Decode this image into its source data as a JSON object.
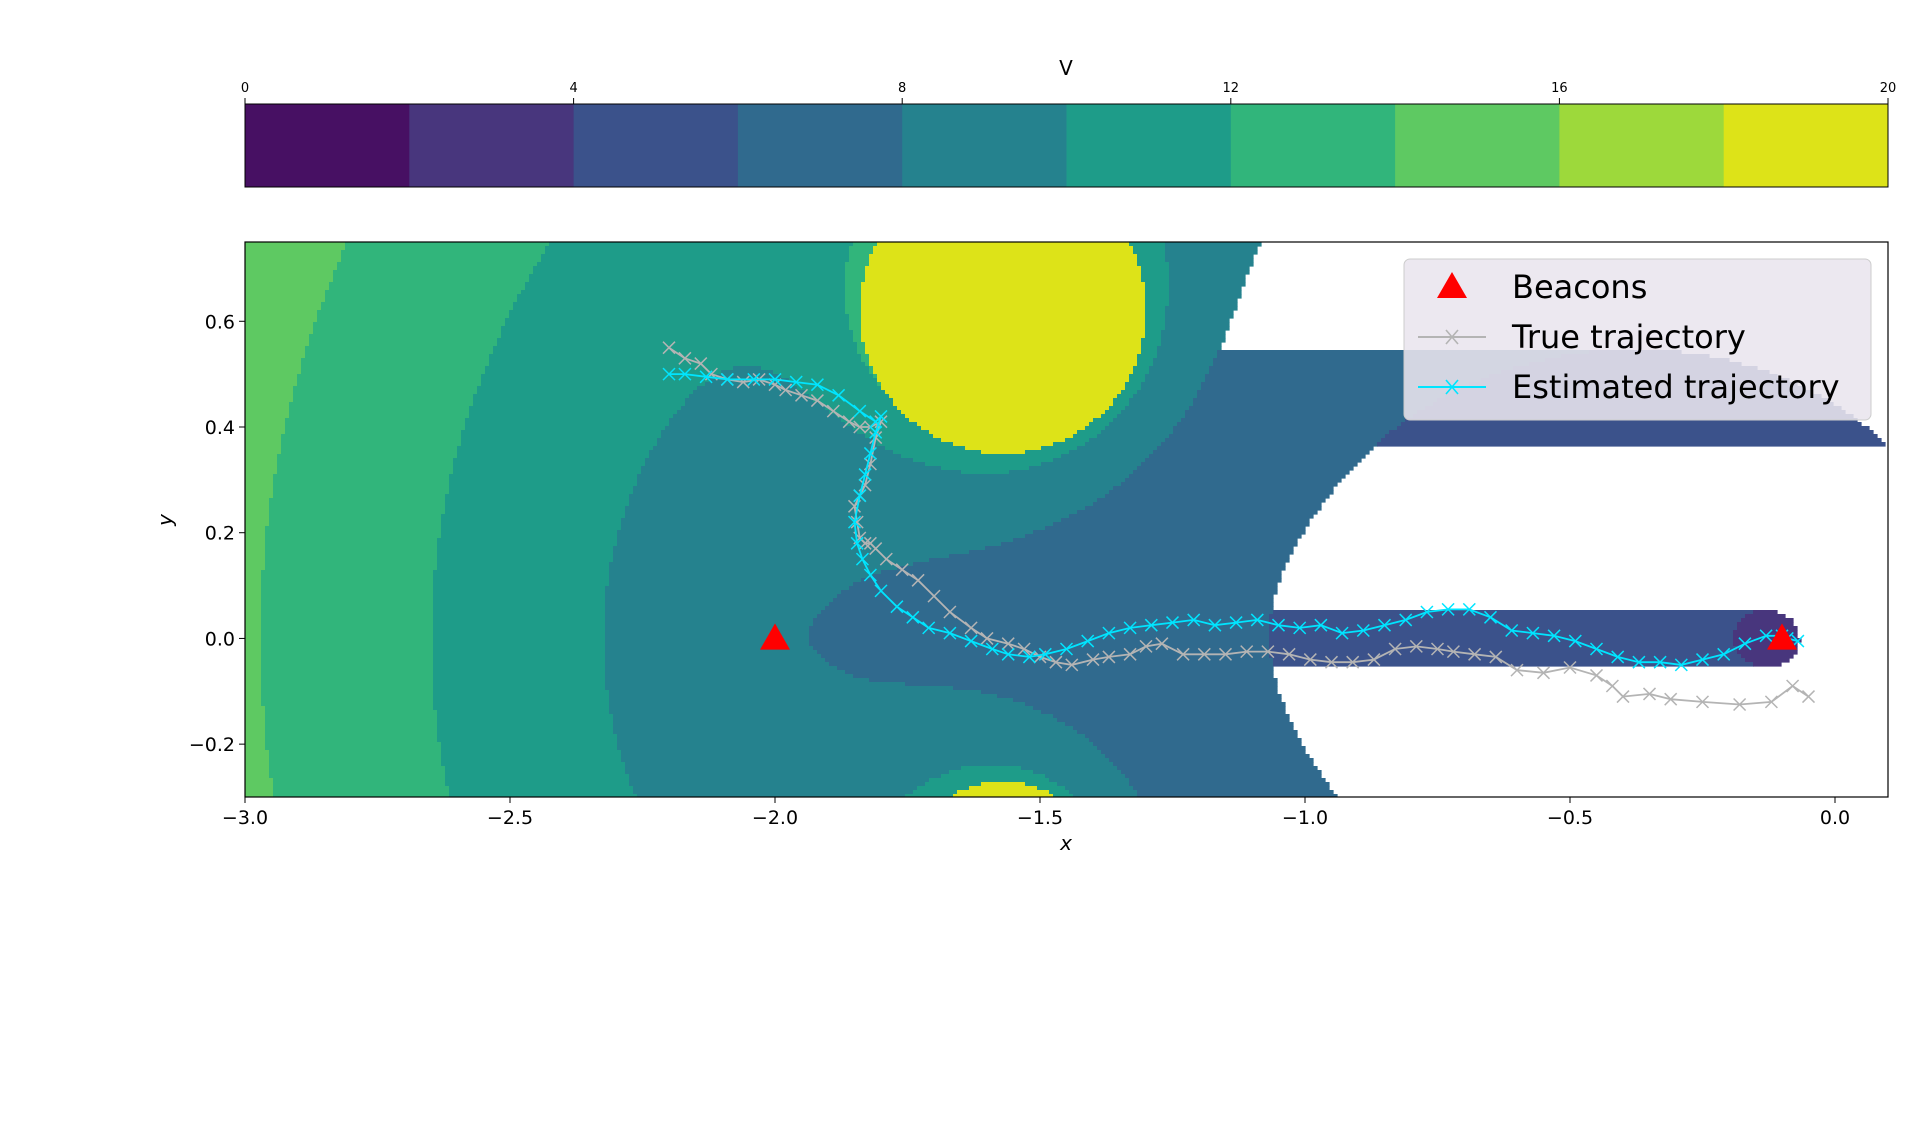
{
  "chart_data": {
    "type": "contourf",
    "colorbar": {
      "label": "V",
      "ticks": [
        0,
        4,
        8,
        12,
        16,
        20
      ],
      "tick_labels": [
        "0",
        "4",
        "8",
        "12",
        "16",
        "20"
      ],
      "levels": [
        0,
        2,
        4,
        6,
        8,
        10,
        12,
        14,
        16,
        18,
        20
      ],
      "colors": [
        "#471063",
        "#48367d",
        "#3b528b",
        "#306a8e",
        "#25828e",
        "#1e9c89",
        "#31b57b",
        "#5ec962",
        "#9dd93b",
        "#dde318"
      ]
    },
    "axes": {
      "xlabel": "x",
      "ylabel": "y",
      "xlim": [
        -3.0,
        0.1
      ],
      "ylim": [
        -0.3,
        0.75
      ],
      "xticks": [
        -3.0,
        -2.5,
        -2.0,
        -1.5,
        -1.0,
        -0.5,
        0.0
      ],
      "xtick_labels": [
        "−3.0",
        "−2.5",
        "−2.0",
        "−1.5",
        "−1.0",
        "−0.5",
        "0.0"
      ],
      "yticks": [
        -0.2,
        0.0,
        0.2,
        0.4,
        0.6
      ],
      "ytick_labels": [
        "−0.2",
        "0.0",
        "0.2",
        "0.4",
        "0.6"
      ]
    },
    "beacons": [
      {
        "x": -2.0,
        "y": 0.0
      },
      {
        "x": -0.1,
        "y": 0.0
      }
    ],
    "series": [
      {
        "name": "True trajectory",
        "color": "#b4b4b4",
        "marker": "x",
        "x": [
          -2.2,
          -2.17,
          -2.14,
          -2.12,
          -2.09,
          -2.06,
          -2.03,
          -2.0,
          -1.98,
          -1.95,
          -1.92,
          -1.89,
          -1.86,
          -1.84,
          -1.82,
          -1.8,
          -1.81,
          -1.82,
          -1.83,
          -1.84,
          -1.85,
          -1.845,
          -1.84,
          -1.83,
          -1.82,
          -1.81,
          -1.79,
          -1.76,
          -1.73,
          -1.7,
          -1.67,
          -1.63,
          -1.6,
          -1.56,
          -1.53,
          -1.5,
          -1.47,
          -1.44,
          -1.4,
          -1.37,
          -1.33,
          -1.3,
          -1.27,
          -1.23,
          -1.19,
          -1.15,
          -1.11,
          -1.07,
          -1.03,
          -0.99,
          -0.95,
          -0.91,
          -0.87,
          -0.83,
          -0.79,
          -0.75,
          -0.72,
          -0.68,
          -0.64,
          -0.6,
          -0.55,
          -0.5,
          -0.45,
          -0.42,
          -0.4,
          -0.35,
          -0.31,
          -0.25,
          -0.18,
          -0.12,
          -0.08,
          -0.05
        ],
        "y": [
          0.55,
          0.53,
          0.52,
          0.5,
          0.49,
          0.485,
          0.49,
          0.48,
          0.47,
          0.46,
          0.45,
          0.43,
          0.41,
          0.4,
          0.4,
          0.41,
          0.38,
          0.33,
          0.29,
          0.27,
          0.25,
          0.22,
          0.19,
          0.18,
          0.18,
          0.17,
          0.15,
          0.13,
          0.11,
          0.08,
          0.05,
          0.02,
          0.0,
          -0.01,
          -0.02,
          -0.035,
          -0.045,
          -0.05,
          -0.04,
          -0.035,
          -0.03,
          -0.015,
          -0.01,
          -0.03,
          -0.03,
          -0.03,
          -0.025,
          -0.025,
          -0.03,
          -0.04,
          -0.045,
          -0.045,
          -0.04,
          -0.02,
          -0.015,
          -0.02,
          -0.025,
          -0.03,
          -0.035,
          -0.06,
          -0.065,
          -0.055,
          -0.07,
          -0.09,
          -0.11,
          -0.105,
          -0.115,
          -0.12,
          -0.125,
          -0.12,
          -0.09,
          -0.11
        ]
      },
      {
        "name": "Estimated trajectory",
        "color": "#00e5ff",
        "marker": "x",
        "x": [
          -2.2,
          -2.17,
          -2.13,
          -2.09,
          -2.04,
          -2.0,
          -1.96,
          -1.92,
          -1.88,
          -1.84,
          -1.81,
          -1.8,
          -1.81,
          -1.82,
          -1.83,
          -1.84,
          -1.85,
          -1.845,
          -1.835,
          -1.82,
          -1.8,
          -1.77,
          -1.74,
          -1.71,
          -1.67,
          -1.63,
          -1.59,
          -1.56,
          -1.52,
          -1.49,
          -1.45,
          -1.41,
          -1.37,
          -1.33,
          -1.29,
          -1.25,
          -1.21,
          -1.17,
          -1.13,
          -1.09,
          -1.05,
          -1.01,
          -0.97,
          -0.93,
          -0.89,
          -0.85,
          -0.81,
          -0.77,
          -0.73,
          -0.69,
          -0.65,
          -0.61,
          -0.57,
          -0.53,
          -0.49,
          -0.45,
          -0.41,
          -0.37,
          -0.33,
          -0.29,
          -0.25,
          -0.21,
          -0.17,
          -0.13,
          -0.1,
          -0.09,
          -0.07
        ],
        "y": [
          0.5,
          0.5,
          0.495,
          0.49,
          0.49,
          0.49,
          0.485,
          0.48,
          0.46,
          0.43,
          0.41,
          0.42,
          0.39,
          0.35,
          0.31,
          0.27,
          0.22,
          0.18,
          0.15,
          0.12,
          0.09,
          0.06,
          0.04,
          0.02,
          0.01,
          -0.005,
          -0.02,
          -0.03,
          -0.035,
          -0.03,
          -0.02,
          -0.005,
          0.01,
          0.02,
          0.025,
          0.03,
          0.035,
          0.025,
          0.03,
          0.035,
          0.025,
          0.02,
          0.025,
          0.01,
          0.015,
          0.025,
          0.035,
          0.05,
          0.055,
          0.055,
          0.04,
          0.015,
          0.01,
          0.005,
          -0.005,
          -0.02,
          -0.035,
          -0.045,
          -0.045,
          -0.05,
          -0.04,
          -0.03,
          -0.01,
          0.005,
          0.005,
          0.0,
          -0.005
        ]
      }
    ],
    "legend": {
      "location": "upper right",
      "entries": [
        {
          "label": "Beacons",
          "kind": "beacon",
          "color": "#ff0000"
        },
        {
          "label": "True trajectory",
          "kind": "line",
          "color": "#b4b4b4"
        },
        {
          "label": "Estimated trajectory",
          "kind": "line",
          "color": "#00e5ff"
        }
      ]
    }
  }
}
